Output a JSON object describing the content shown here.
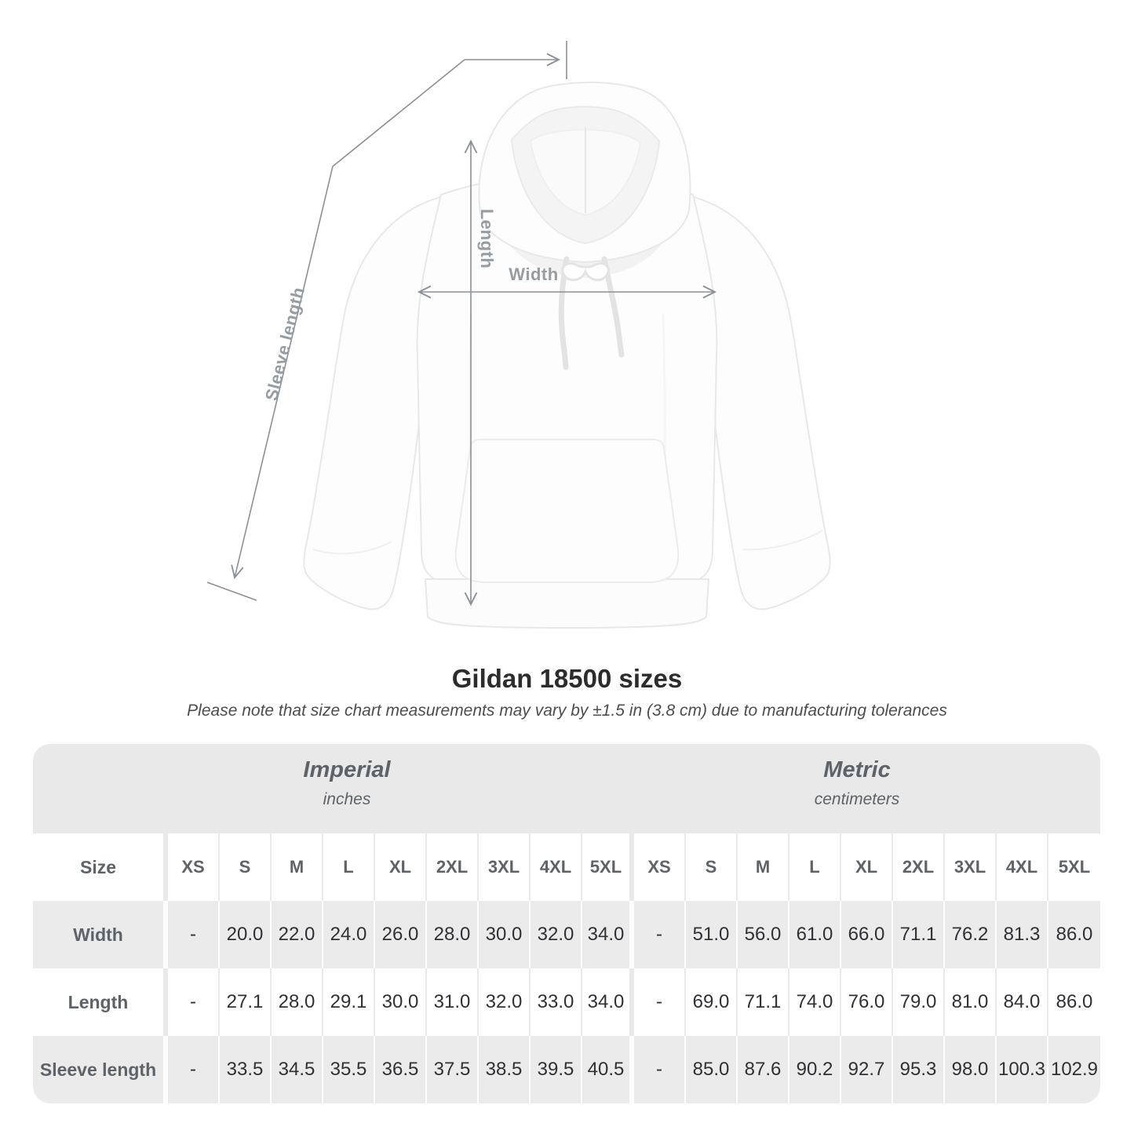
{
  "diagram": {
    "length_label": "Length",
    "width_label": "Width",
    "sleeve_length_label": "Sleeve length"
  },
  "heading": {
    "title": "Gildan 18500 sizes",
    "subtitle": "Please note that size chart measurements may vary by ±1.5 in (3.8 cm) due to manufacturing tolerances"
  },
  "size_table": {
    "size_col_header": "Size",
    "groups": [
      {
        "name": "Imperial",
        "unit": "inches"
      },
      {
        "name": "Metric",
        "unit": "centimeters"
      }
    ],
    "sizes": [
      "XS",
      "S",
      "M",
      "L",
      "XL",
      "2XL",
      "3XL",
      "4XL",
      "5XL"
    ],
    "rows": [
      {
        "label": "Width",
        "imperial": [
          "-",
          "20.0",
          "22.0",
          "24.0",
          "26.0",
          "28.0",
          "30.0",
          "32.0",
          "34.0"
        ],
        "metric": [
          "-",
          "51.0",
          "56.0",
          "61.0",
          "66.0",
          "71.1",
          "76.2",
          "81.3",
          "86.0"
        ]
      },
      {
        "label": "Length",
        "imperial": [
          "-",
          "27.1",
          "28.0",
          "29.1",
          "30.0",
          "31.0",
          "32.0",
          "33.0",
          "34.0"
        ],
        "metric": [
          "-",
          "69.0",
          "71.1",
          "74.0",
          "76.0",
          "79.0",
          "81.0",
          "84.0",
          "86.0"
        ]
      },
      {
        "label": "Sleeve length",
        "imperial": [
          "-",
          "33.5",
          "34.5",
          "35.5",
          "36.5",
          "37.5",
          "38.5",
          "39.5",
          "40.5"
        ],
        "metric": [
          "-",
          "85.0",
          "87.6",
          "90.2",
          "92.7",
          "95.3",
          "98.0",
          "100.3",
          "102.9"
        ]
      }
    ]
  },
  "colors": {
    "measure_line": "#8b9096",
    "measure_label": "#959ca2",
    "band_gray": "#e9e9e9",
    "row_gray": "#ebebeb",
    "header_text": "#5d6368",
    "value_text": "#2f3134"
  }
}
